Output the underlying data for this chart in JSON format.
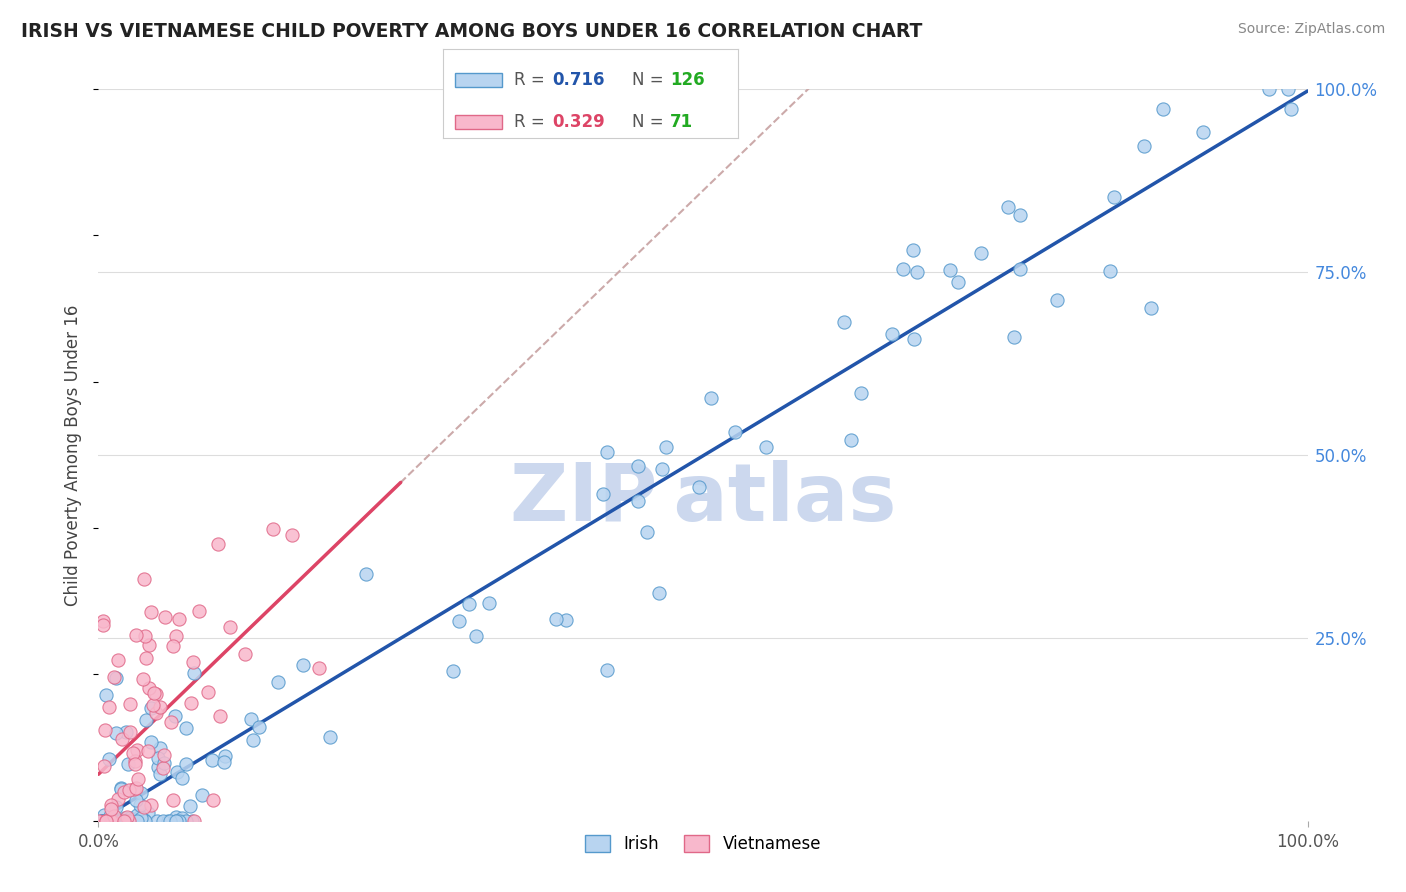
{
  "title": "IRISH VS VIETNAMESE CHILD POVERTY AMONG BOYS UNDER 16 CORRELATION CHART",
  "source": "Source: ZipAtlas.com",
  "ylabel": "Child Poverty Among Boys Under 16",
  "irish_color": "#b8d4f0",
  "irish_edge_color": "#5599cc",
  "vietnamese_color": "#f8b8cc",
  "vietnamese_edge_color": "#e06888",
  "irish_R": 0.716,
  "irish_N": 126,
  "vietnamese_R": 0.329,
  "vietnamese_N": 71,
  "irish_line_color": "#2255aa",
  "vietnamese_line_color": "#dd4466",
  "dashed_line_color": "#ccaaaa",
  "watermark_color": "#ccd8ee",
  "background_color": "#ffffff",
  "grid_color": "#dddddd",
  "legend_N_color": "#22aa22",
  "right_tick_color": "#4488dd"
}
